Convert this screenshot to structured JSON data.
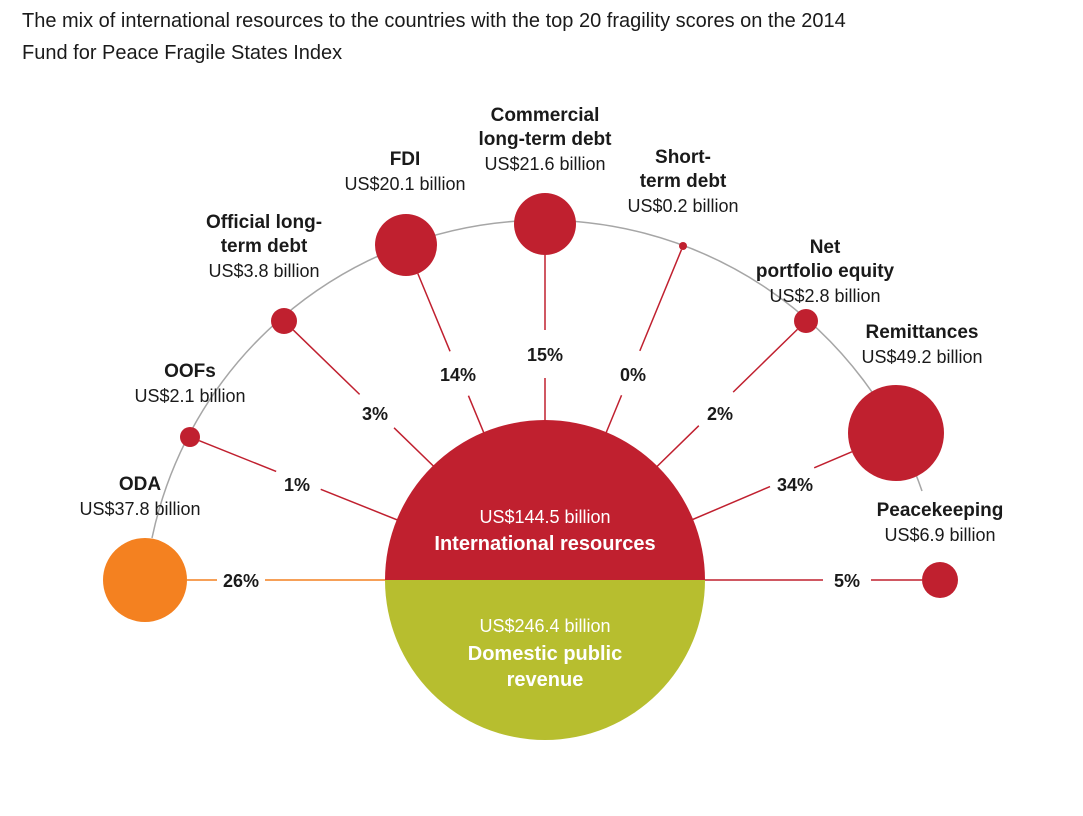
{
  "title_line1": "The mix of international resources to the countries with the top 20 fragility scores on the 2014",
  "title_line2": "Fund for Peace Fragile States Index",
  "colors": {
    "international": "#c0202f",
    "domestic": "#b7be2f",
    "oda": "#f48120",
    "arc": "#a6a6a6"
  },
  "international": {
    "amount": "US$144.5 billion",
    "name": "International resources",
    "value_billion": 144.5
  },
  "domestic": {
    "amount": "US$246.4 billion",
    "name_line1": "Domestic public",
    "name_line2": "revenue",
    "value_billion": 246.4
  },
  "sources": [
    {
      "id": "oda",
      "name_lines": [
        "ODA"
      ],
      "amount": "US$37.8 billion",
      "value_billion": 37.8,
      "share": "26%"
    },
    {
      "id": "oofs",
      "name_lines": [
        "OOFs"
      ],
      "amount": "US$2.1 billion",
      "value_billion": 2.1,
      "share": "1%"
    },
    {
      "id": "official-debt",
      "name_lines": [
        "Official long-",
        "term debt"
      ],
      "amount": "US$3.8 billion",
      "value_billion": 3.8,
      "share": "3%"
    },
    {
      "id": "fdi",
      "name_lines": [
        "FDI"
      ],
      "amount": "US$20.1 billion",
      "value_billion": 20.1,
      "share": "14%"
    },
    {
      "id": "commercial-debt",
      "name_lines": [
        "Commercial",
        "long-term debt"
      ],
      "amount": "US$21.6 billion",
      "value_billion": 21.6,
      "share": "15%"
    },
    {
      "id": "short-term-debt",
      "name_lines": [
        "Short-",
        "term debt"
      ],
      "amount": "US$0.2 billion",
      "value_billion": 0.2,
      "share": "0%"
    },
    {
      "id": "portfolio-equity",
      "name_lines": [
        "Net",
        "portfolio equity"
      ],
      "amount": "US$2.8 billion",
      "value_billion": 2.8,
      "share": "2%"
    },
    {
      "id": "remittances",
      "name_lines": [
        "Remittances"
      ],
      "amount": "US$49.2 billion",
      "value_billion": 49.2,
      "share": "34%"
    },
    {
      "id": "peacekeeping",
      "name_lines": [
        "Peacekeeping"
      ],
      "amount": "US$6.9 billion",
      "value_billion": 6.9,
      "share": "5%"
    }
  ]
}
